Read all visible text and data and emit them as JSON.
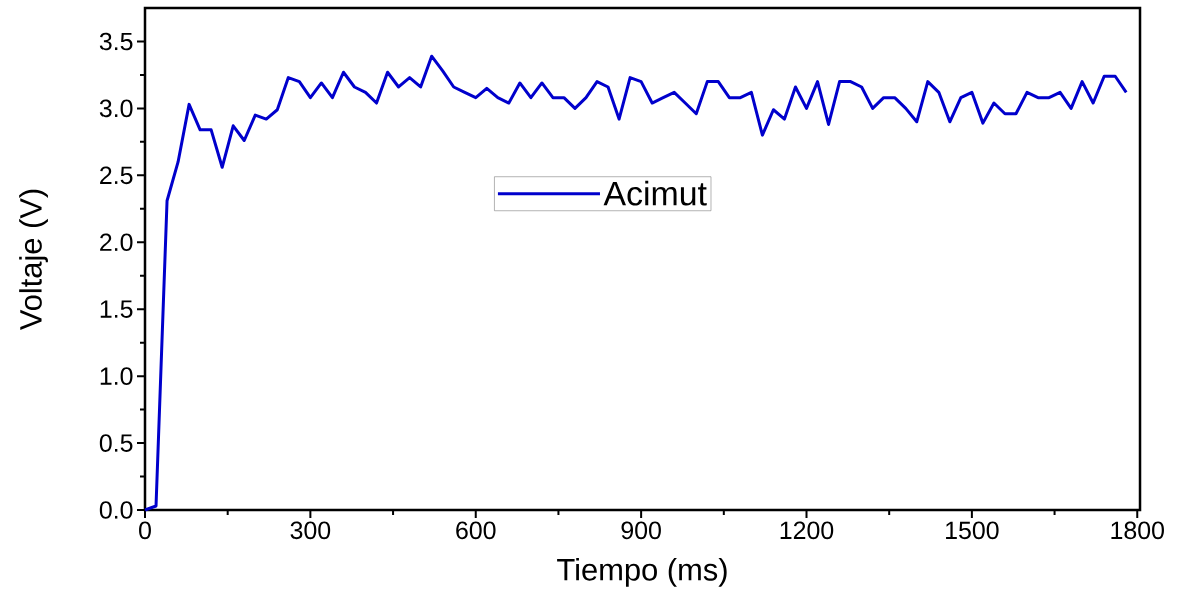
{
  "chart_data": {
    "type": "line",
    "xlabel": "Tiempo (ms)",
    "ylabel": "Voltaje (V)",
    "x": [
      0,
      20,
      40,
      60,
      80,
      100,
      120,
      140,
      160,
      180,
      200,
      220,
      240,
      260,
      280,
      300,
      320,
      340,
      360,
      380,
      400,
      420,
      440,
      460,
      480,
      500,
      520,
      540,
      560,
      580,
      600,
      620,
      640,
      660,
      680,
      700,
      720,
      740,
      760,
      780,
      800,
      820,
      840,
      860,
      880,
      900,
      920,
      940,
      960,
      980,
      1000,
      1020,
      1040,
      1060,
      1080,
      1100,
      1120,
      1140,
      1160,
      1180,
      1200,
      1220,
      1240,
      1260,
      1280,
      1300,
      1320,
      1340,
      1360,
      1380,
      1400,
      1420,
      1440,
      1460,
      1480,
      1500,
      1520,
      1540,
      1560,
      1580,
      1600,
      1620,
      1640,
      1660,
      1680,
      1700,
      1720,
      1740,
      1760,
      1780
    ],
    "series": [
      {
        "name": "Acimut",
        "color": "#0000cc",
        "values": [
          0,
          0.03,
          2.31,
          2.6,
          3.03,
          2.84,
          2.84,
          2.56,
          2.87,
          2.76,
          2.95,
          2.92,
          2.99,
          3.23,
          3.2,
          3.08,
          3.19,
          3.08,
          3.27,
          3.16,
          3.12,
          3.04,
          3.27,
          3.16,
          3.23,
          3.16,
          3.39,
          3.28,
          3.16,
          3.12,
          3.08,
          3.15,
          3.08,
          3.04,
          3.19,
          3.08,
          3.19,
          3.08,
          3.08,
          3.0,
          3.08,
          3.2,
          3.16,
          2.92,
          3.23,
          3.2,
          3.04,
          3.08,
          3.12,
          3.04,
          2.96,
          3.2,
          3.2,
          3.08,
          3.08,
          3.12,
          2.8,
          2.99,
          2.92,
          3.16,
          3.0,
          3.2,
          2.88,
          3.2,
          3.2,
          3.16,
          3.0,
          3.08,
          3.08,
          3.0,
          2.9,
          3.2,
          3.12,
          2.9,
          3.08,
          3.12,
          2.89,
          3.04,
          2.96,
          2.96,
          3.12,
          3.08,
          3.08,
          3.12,
          3.0,
          3.2,
          3.04,
          3.24,
          3.24,
          3.12
        ]
      }
    ],
    "xlim": [
      0,
      1805
    ],
    "ylim": [
      0,
      3.75
    ],
    "xticks": [
      0,
      300,
      600,
      900,
      1200,
      1500,
      1800
    ],
    "yticks": [
      {
        "value": 0,
        "label": "0.0"
      },
      {
        "value": 0.5,
        "label": "0.5"
      },
      {
        "value": 1,
        "label": "1.0"
      },
      {
        "value": 1.5,
        "label": "1.5"
      },
      {
        "value": 2,
        "label": "2.0"
      },
      {
        "value": 2.5,
        "label": "2.5"
      },
      {
        "value": 3,
        "label": "3.0"
      },
      {
        "value": 3.5,
        "label": "3.5"
      }
    ],
    "legend": "center",
    "grid": false,
    "marker": "none",
    "line_style": "solid"
  }
}
